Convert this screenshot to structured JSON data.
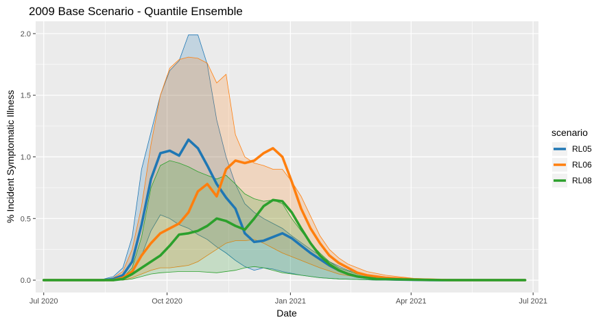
{
  "colors": {
    "RL05": "#1f77b4",
    "RL06": "#ff7f0e",
    "RL08": "#2ca02c",
    "panel": "#ebebeb",
    "grid": "#ffffff"
  },
  "chart_data": {
    "type": "line",
    "title": "2009 Base Scenario - Quantile Ensemble",
    "xlabel": "Date",
    "ylabel": "% Incident Symptomatic Illness",
    "xlim": [
      "2020-06-25",
      "2021-07-05"
    ],
    "ylim": [
      -0.1,
      2.1
    ],
    "grid": true,
    "legend_title": "scenario",
    "legend_position": "right",
    "x_ticks": [
      {
        "date": "2020-07-01",
        "label": "Jul 2020"
      },
      {
        "date": "2020-10-01",
        "label": "Oct 2020"
      },
      {
        "date": "2021-01-01",
        "label": "Jan 2021"
      },
      {
        "date": "2021-04-01",
        "label": "Apr 2021"
      },
      {
        "date": "2021-07-01",
        "label": "Jul 2021"
      }
    ],
    "y_ticks": [
      {
        "value": 0.0,
        "label": "0.0"
      },
      {
        "value": 0.5,
        "label": "0.5"
      },
      {
        "value": 1.0,
        "label": "1.0"
      },
      {
        "value": 1.5,
        "label": "1.5"
      },
      {
        "value": 2.0,
        "label": "2.0"
      }
    ],
    "series": [
      {
        "name": "RL05",
        "median": [
          [
            "2020-07-01",
            0
          ],
          [
            "2020-08-15",
            0
          ],
          [
            "2020-08-22",
            0.01
          ],
          [
            "2020-08-29",
            0.04
          ],
          [
            "2020-09-05",
            0.15
          ],
          [
            "2020-09-12",
            0.45
          ],
          [
            "2020-09-19",
            0.82
          ],
          [
            "2020-09-26",
            1.03
          ],
          [
            "2020-10-03",
            1.05
          ],
          [
            "2020-10-10",
            1.01
          ],
          [
            "2020-10-17",
            1.14
          ],
          [
            "2020-10-24",
            1.07
          ],
          [
            "2020-10-31",
            0.93
          ],
          [
            "2020-11-07",
            0.78
          ],
          [
            "2020-11-14",
            0.67
          ],
          [
            "2020-11-21",
            0.58
          ],
          [
            "2020-11-28",
            0.38
          ],
          [
            "2020-12-05",
            0.31
          ],
          [
            "2020-12-12",
            0.32
          ],
          [
            "2020-12-19",
            0.35
          ],
          [
            "2020-12-26",
            0.38
          ],
          [
            "2021-01-02",
            0.34
          ],
          [
            "2021-01-09",
            0.28
          ],
          [
            "2021-01-16",
            0.22
          ],
          [
            "2021-01-23",
            0.17
          ],
          [
            "2021-01-30",
            0.12
          ],
          [
            "2021-02-06",
            0.08
          ],
          [
            "2021-02-13",
            0.05
          ],
          [
            "2021-02-20",
            0.03
          ],
          [
            "2021-03-06",
            0.01
          ],
          [
            "2021-03-20",
            0.005
          ],
          [
            "2021-04-15",
            0
          ],
          [
            "2021-06-25",
            0
          ]
        ],
        "lower": [
          [
            "2020-07-01",
            0
          ],
          [
            "2020-08-22",
            0
          ],
          [
            "2020-08-29",
            0.01
          ],
          [
            "2020-09-05",
            0.05
          ],
          [
            "2020-09-12",
            0.2
          ],
          [
            "2020-09-19",
            0.4
          ],
          [
            "2020-09-26",
            0.53
          ],
          [
            "2020-10-03",
            0.5
          ],
          [
            "2020-10-10",
            0.45
          ],
          [
            "2020-10-17",
            0.42
          ],
          [
            "2020-10-24",
            0.37
          ],
          [
            "2020-10-31",
            0.33
          ],
          [
            "2020-11-07",
            0.27
          ],
          [
            "2020-11-14",
            0.22
          ],
          [
            "2020-11-21",
            0.16
          ],
          [
            "2020-11-28",
            0.11
          ],
          [
            "2020-12-05",
            0.08
          ],
          [
            "2020-12-12",
            0.1
          ],
          [
            "2020-12-19",
            0.09
          ],
          [
            "2020-12-26",
            0.07
          ],
          [
            "2021-01-09",
            0.04
          ],
          [
            "2021-01-23",
            0.02
          ],
          [
            "2021-02-06",
            0.01
          ],
          [
            "2021-03-06",
            0
          ],
          [
            "2021-06-25",
            0
          ]
        ],
        "upper": [
          [
            "2020-07-01",
            0
          ],
          [
            "2020-08-08",
            0
          ],
          [
            "2020-08-15",
            0.01
          ],
          [
            "2020-08-22",
            0.03
          ],
          [
            "2020-08-29",
            0.1
          ],
          [
            "2020-09-05",
            0.35
          ],
          [
            "2020-09-12",
            0.9
          ],
          [
            "2020-09-19",
            1.2
          ],
          [
            "2020-09-26",
            1.5
          ],
          [
            "2020-10-03",
            1.7
          ],
          [
            "2020-10-10",
            1.78
          ],
          [
            "2020-10-17",
            1.99
          ],
          [
            "2020-10-24",
            1.99
          ],
          [
            "2020-10-31",
            1.75
          ],
          [
            "2020-11-07",
            1.3
          ],
          [
            "2020-11-14",
            1.0
          ],
          [
            "2020-11-21",
            0.78
          ],
          [
            "2020-11-28",
            0.62
          ],
          [
            "2020-12-05",
            0.55
          ],
          [
            "2020-12-12",
            0.5
          ],
          [
            "2020-12-19",
            0.46
          ],
          [
            "2020-12-26",
            0.42
          ],
          [
            "2021-01-02",
            0.36
          ],
          [
            "2021-01-16",
            0.25
          ],
          [
            "2021-01-30",
            0.15
          ],
          [
            "2021-02-13",
            0.08
          ],
          [
            "2021-02-27",
            0.04
          ],
          [
            "2021-03-13",
            0.015
          ],
          [
            "2021-04-03",
            0.005
          ],
          [
            "2021-05-01",
            0
          ],
          [
            "2021-06-25",
            0
          ]
        ]
      },
      {
        "name": "RL06",
        "median": [
          [
            "2020-07-01",
            0
          ],
          [
            "2020-08-22",
            0
          ],
          [
            "2020-08-29",
            0.02
          ],
          [
            "2020-09-05",
            0.07
          ],
          [
            "2020-09-12",
            0.2
          ],
          [
            "2020-09-19",
            0.3
          ],
          [
            "2020-09-26",
            0.38
          ],
          [
            "2020-10-03",
            0.42
          ],
          [
            "2020-10-10",
            0.46
          ],
          [
            "2020-10-17",
            0.55
          ],
          [
            "2020-10-24",
            0.72
          ],
          [
            "2020-10-31",
            0.78
          ],
          [
            "2020-11-07",
            0.68
          ],
          [
            "2020-11-14",
            0.9
          ],
          [
            "2020-11-21",
            0.97
          ],
          [
            "2020-11-28",
            0.95
          ],
          [
            "2020-12-05",
            0.97
          ],
          [
            "2020-12-12",
            1.03
          ],
          [
            "2020-12-19",
            1.07
          ],
          [
            "2020-12-26",
            1.0
          ],
          [
            "2021-01-02",
            0.8
          ],
          [
            "2021-01-09",
            0.58
          ],
          [
            "2021-01-16",
            0.42
          ],
          [
            "2021-01-23",
            0.3
          ],
          [
            "2021-01-30",
            0.2
          ],
          [
            "2021-02-06",
            0.14
          ],
          [
            "2021-02-13",
            0.1
          ],
          [
            "2021-02-20",
            0.06
          ],
          [
            "2021-02-27",
            0.04
          ],
          [
            "2021-03-13",
            0.02
          ],
          [
            "2021-04-03",
            0.005
          ],
          [
            "2021-05-01",
            0
          ],
          [
            "2021-06-25",
            0
          ]
        ],
        "lower": [
          [
            "2020-07-01",
            0
          ],
          [
            "2020-08-29",
            0
          ],
          [
            "2020-09-05",
            0.02
          ],
          [
            "2020-09-12",
            0.05
          ],
          [
            "2020-09-19",
            0.08
          ],
          [
            "2020-09-26",
            0.1
          ],
          [
            "2020-10-03",
            0.1
          ],
          [
            "2020-10-10",
            0.11
          ],
          [
            "2020-10-17",
            0.12
          ],
          [
            "2020-10-24",
            0.15
          ],
          [
            "2020-10-31",
            0.2
          ],
          [
            "2020-11-07",
            0.25
          ],
          [
            "2020-11-14",
            0.3
          ],
          [
            "2020-11-21",
            0.32
          ],
          [
            "2020-11-28",
            0.32
          ],
          [
            "2020-12-05",
            0.33
          ],
          [
            "2020-12-12",
            0.3
          ],
          [
            "2020-12-19",
            0.26
          ],
          [
            "2020-12-26",
            0.22
          ],
          [
            "2021-01-09",
            0.16
          ],
          [
            "2021-01-23",
            0.1
          ],
          [
            "2021-02-06",
            0.05
          ],
          [
            "2021-02-20",
            0.025
          ],
          [
            "2021-03-13",
            0.01
          ],
          [
            "2021-04-10",
            0
          ],
          [
            "2021-06-25",
            0
          ]
        ],
        "upper": [
          [
            "2020-07-01",
            0
          ],
          [
            "2020-08-15",
            0
          ],
          [
            "2020-08-22",
            0.02
          ],
          [
            "2020-08-29",
            0.07
          ],
          [
            "2020-09-05",
            0.25
          ],
          [
            "2020-09-12",
            0.6
          ],
          [
            "2020-09-19",
            1.1
          ],
          [
            "2020-09-26",
            1.5
          ],
          [
            "2020-10-03",
            1.72
          ],
          [
            "2020-10-10",
            1.79
          ],
          [
            "2020-10-17",
            1.81
          ],
          [
            "2020-10-24",
            1.8
          ],
          [
            "2020-10-31",
            1.76
          ],
          [
            "2020-11-07",
            1.6
          ],
          [
            "2020-11-14",
            1.67
          ],
          [
            "2020-11-21",
            1.18
          ],
          [
            "2020-11-28",
            1.0
          ],
          [
            "2020-12-05",
            0.95
          ],
          [
            "2020-12-12",
            0.93
          ],
          [
            "2020-12-19",
            0.9
          ],
          [
            "2020-12-26",
            0.9
          ],
          [
            "2021-01-02",
            0.8
          ],
          [
            "2021-01-09",
            0.68
          ],
          [
            "2021-01-16",
            0.52
          ],
          [
            "2021-01-23",
            0.36
          ],
          [
            "2021-01-30",
            0.25
          ],
          [
            "2021-02-06",
            0.18
          ],
          [
            "2021-02-13",
            0.13
          ],
          [
            "2021-02-27",
            0.07
          ],
          [
            "2021-03-13",
            0.04
          ],
          [
            "2021-04-03",
            0.015
          ],
          [
            "2021-05-01",
            0.005
          ],
          [
            "2021-05-29",
            0
          ],
          [
            "2021-06-25",
            0
          ]
        ]
      },
      {
        "name": "RL08",
        "median": [
          [
            "2020-07-01",
            0
          ],
          [
            "2020-08-22",
            0
          ],
          [
            "2020-08-29",
            0.01
          ],
          [
            "2020-09-05",
            0.05
          ],
          [
            "2020-09-12",
            0.1
          ],
          [
            "2020-09-19",
            0.15
          ],
          [
            "2020-09-26",
            0.2
          ],
          [
            "2020-10-03",
            0.28
          ],
          [
            "2020-10-10",
            0.37
          ],
          [
            "2020-10-17",
            0.38
          ],
          [
            "2020-10-24",
            0.4
          ],
          [
            "2020-10-31",
            0.44
          ],
          [
            "2020-11-07",
            0.5
          ],
          [
            "2020-11-14",
            0.48
          ],
          [
            "2020-11-21",
            0.44
          ],
          [
            "2020-11-28",
            0.41
          ],
          [
            "2020-12-05",
            0.5
          ],
          [
            "2020-12-12",
            0.6
          ],
          [
            "2020-12-19",
            0.65
          ],
          [
            "2020-12-26",
            0.64
          ],
          [
            "2021-01-02",
            0.55
          ],
          [
            "2021-01-09",
            0.42
          ],
          [
            "2021-01-16",
            0.3
          ],
          [
            "2021-01-23",
            0.2
          ],
          [
            "2021-01-30",
            0.13
          ],
          [
            "2021-02-06",
            0.08
          ],
          [
            "2021-02-13",
            0.05
          ],
          [
            "2021-02-20",
            0.03
          ],
          [
            "2021-03-06",
            0.01
          ],
          [
            "2021-03-27",
            0.005
          ],
          [
            "2021-04-24",
            0
          ],
          [
            "2021-06-25",
            0
          ]
        ],
        "lower": [
          [
            "2020-07-01",
            0
          ],
          [
            "2020-08-29",
            0
          ],
          [
            "2020-09-05",
            0.01
          ],
          [
            "2020-09-12",
            0.03
          ],
          [
            "2020-09-19",
            0.05
          ],
          [
            "2020-09-26",
            0.06
          ],
          [
            "2020-10-10",
            0.07
          ],
          [
            "2020-10-24",
            0.07
          ],
          [
            "2020-11-07",
            0.06
          ],
          [
            "2020-11-21",
            0.08
          ],
          [
            "2020-11-28",
            0.1
          ],
          [
            "2020-12-05",
            0.11
          ],
          [
            "2020-12-12",
            0.1
          ],
          [
            "2020-12-19",
            0.08
          ],
          [
            "2020-12-26",
            0.06
          ],
          [
            "2021-01-09",
            0.04
          ],
          [
            "2021-01-23",
            0.02
          ],
          [
            "2021-02-06",
            0.01
          ],
          [
            "2021-03-06",
            0
          ],
          [
            "2021-06-25",
            0
          ]
        ],
        "upper": [
          [
            "2020-07-01",
            0
          ],
          [
            "2020-08-22",
            0
          ],
          [
            "2020-08-29",
            0.02
          ],
          [
            "2020-09-05",
            0.1
          ],
          [
            "2020-09-12",
            0.35
          ],
          [
            "2020-09-19",
            0.75
          ],
          [
            "2020-09-26",
            0.93
          ],
          [
            "2020-10-03",
            0.97
          ],
          [
            "2020-10-10",
            0.95
          ],
          [
            "2020-10-17",
            0.92
          ],
          [
            "2020-10-24",
            0.88
          ],
          [
            "2020-10-31",
            0.85
          ],
          [
            "2020-11-07",
            0.82
          ],
          [
            "2020-11-14",
            0.85
          ],
          [
            "2020-11-21",
            0.78
          ],
          [
            "2020-11-28",
            0.7
          ],
          [
            "2020-12-05",
            0.66
          ],
          [
            "2020-12-12",
            0.64
          ],
          [
            "2020-12-19",
            0.65
          ],
          [
            "2020-12-26",
            0.62
          ],
          [
            "2021-01-02",
            0.5
          ],
          [
            "2021-01-09",
            0.4
          ],
          [
            "2021-01-16",
            0.3
          ],
          [
            "2021-01-23",
            0.22
          ],
          [
            "2021-01-30",
            0.15
          ],
          [
            "2021-02-06",
            0.1
          ],
          [
            "2021-02-20",
            0.05
          ],
          [
            "2021-03-06",
            0.02
          ],
          [
            "2021-03-27",
            0.01
          ],
          [
            "2021-04-24",
            0
          ],
          [
            "2021-06-25",
            0
          ]
        ]
      }
    ]
  }
}
